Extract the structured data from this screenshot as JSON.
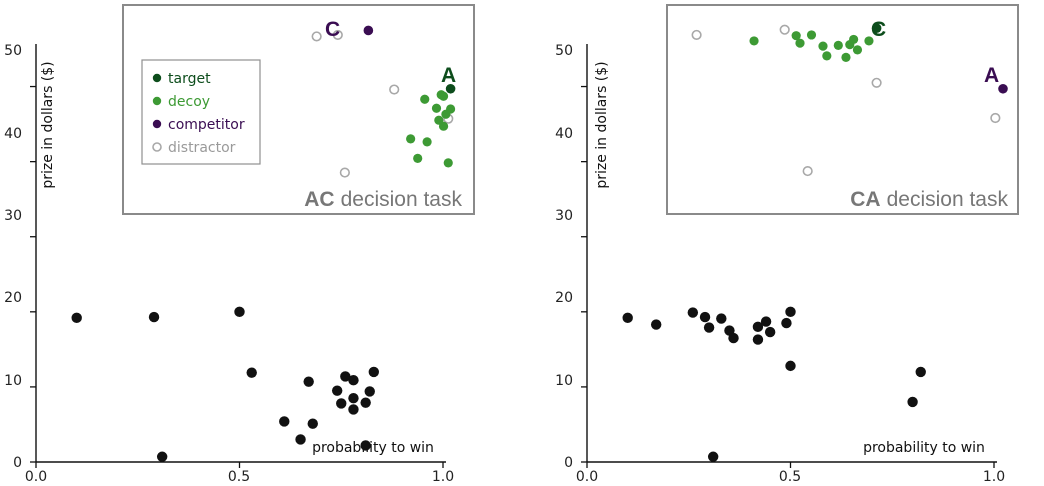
{
  "colors": {
    "target": "#0d4d1c",
    "decoy": "#3d9a34",
    "competitor": "#3a0d52",
    "distractor": "#a8a8a8",
    "main_points": "#111111"
  },
  "legend": {
    "target": "target",
    "decoy": "decoy",
    "competitor": "competitor",
    "distractor": "distractor"
  },
  "chart_data": [
    {
      "type": "scatter",
      "xlabel": "probability to win",
      "ylabel": "prize in dollars ($)",
      "xlim": [
        0,
        1.0
      ],
      "ylim": [
        0,
        55
      ],
      "x_ticks": [
        "0.0",
        "0.5",
        "1.0"
      ],
      "y_ticks": [
        "0",
        "10",
        "20",
        "30",
        "40",
        "50"
      ],
      "points": [
        [
          0.1,
          19.2
        ],
        [
          0.29,
          19.3
        ],
        [
          0.5,
          20.0
        ],
        [
          0.31,
          0.7
        ],
        [
          0.53,
          11.9
        ],
        [
          0.61,
          5.4
        ],
        [
          0.65,
          3.0
        ],
        [
          0.67,
          10.7
        ],
        [
          0.68,
          5.1
        ],
        [
          0.74,
          9.5
        ],
        [
          0.75,
          7.8
        ],
        [
          0.76,
          11.4
        ],
        [
          0.78,
          10.9
        ],
        [
          0.78,
          8.5
        ],
        [
          0.78,
          7.0
        ],
        [
          0.81,
          7.9
        ],
        [
          0.81,
          2.2
        ],
        [
          0.82,
          9.4
        ],
        [
          0.83,
          12.0
        ]
      ],
      "inset": {
        "task_code": "AC",
        "task_rest": "decision task",
        "label_a": "A",
        "label_c": "C",
        "target": [
          [
            0.96,
            44.6
          ]
        ],
        "competitor": [
          [
            0.61,
            52.4
          ]
        ],
        "decoy": [
          [
            0.79,
            37.9
          ],
          [
            0.82,
            35.3
          ],
          [
            0.85,
            43.2
          ],
          [
            0.86,
            37.5
          ],
          [
            0.9,
            42.0
          ],
          [
            0.91,
            40.4
          ],
          [
            0.92,
            43.8
          ],
          [
            0.93,
            43.6
          ],
          [
            0.93,
            39.6
          ],
          [
            0.94,
            41.2
          ],
          [
            0.95,
            34.7
          ],
          [
            0.96,
            41.9
          ]
        ],
        "distractor": [
          [
            0.39,
            51.6
          ],
          [
            0.48,
            51.8
          ],
          [
            0.51,
            33.4
          ],
          [
            0.72,
            44.5
          ],
          [
            0.95,
            40.6
          ]
        ]
      }
    },
    {
      "type": "scatter",
      "xlabel": "probability to win",
      "ylabel": "prize in dollars ($)",
      "xlim": [
        0,
        1.0
      ],
      "ylim": [
        0,
        55
      ],
      "x_ticks": [
        "0.0",
        "0.5",
        "1.0"
      ],
      "y_ticks": [
        "0",
        "10",
        "20",
        "30",
        "40",
        "50"
      ],
      "points": [
        [
          0.1,
          19.2
        ],
        [
          0.17,
          18.3
        ],
        [
          0.26,
          19.9
        ],
        [
          0.29,
          19.3
        ],
        [
          0.3,
          17.9
        ],
        [
          0.33,
          19.1
        ],
        [
          0.35,
          17.5
        ],
        [
          0.36,
          16.5
        ],
        [
          0.31,
          0.7
        ],
        [
          0.42,
          18.0
        ],
        [
          0.42,
          16.3
        ],
        [
          0.44,
          18.7
        ],
        [
          0.45,
          17.3
        ],
        [
          0.49,
          18.5
        ],
        [
          0.5,
          20.0
        ],
        [
          0.5,
          12.8
        ],
        [
          0.8,
          8.0
        ],
        [
          0.82,
          12.0
        ]
      ],
      "inset": {
        "task_code": "CA",
        "task_rest": "decision task",
        "label_a": "A",
        "label_c": "C",
        "target": [
          [
            0.67,
            52.7
          ]
        ],
        "competitor": [
          [
            1.0,
            44.6
          ]
        ],
        "decoy": [
          [
            0.35,
            51.0
          ],
          [
            0.46,
            51.7
          ],
          [
            0.47,
            50.7
          ],
          [
            0.5,
            51.8
          ],
          [
            0.53,
            50.3
          ],
          [
            0.54,
            49.0
          ],
          [
            0.57,
            50.4
          ],
          [
            0.59,
            48.8
          ],
          [
            0.6,
            50.5
          ],
          [
            0.61,
            51.2
          ],
          [
            0.62,
            49.8
          ],
          [
            0.65,
            51.0
          ]
        ],
        "distractor": [
          [
            0.2,
            51.8
          ],
          [
            0.43,
            52.5
          ],
          [
            0.49,
            33.6
          ],
          [
            0.67,
            45.4
          ],
          [
            0.98,
            40.7
          ]
        ]
      }
    }
  ]
}
